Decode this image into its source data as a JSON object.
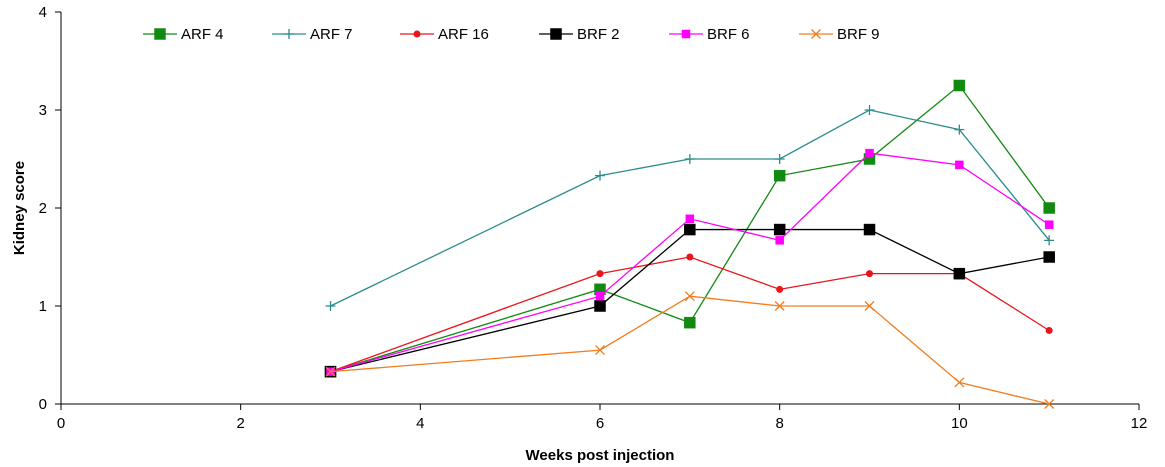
{
  "chart_data": {
    "type": "line",
    "title": "",
    "xlabel": "Weeks post injection",
    "ylabel": "Kidney score",
    "xlim": [
      0,
      12
    ],
    "ylim": [
      0,
      4
    ],
    "x_ticks": [
      0,
      2,
      4,
      6,
      8,
      10,
      12
    ],
    "y_ticks": [
      0,
      1,
      2,
      3,
      4
    ],
    "grid": false,
    "legend_position": "top",
    "series": [
      {
        "name": "ARF 4",
        "color": "#128a12",
        "marker": "square",
        "points": [
          [
            3,
            0.33
          ],
          [
            6,
            1.17
          ],
          [
            7,
            0.83
          ],
          [
            8,
            2.33
          ],
          [
            9,
            2.5
          ],
          [
            10,
            3.25
          ],
          [
            11,
            2.0
          ]
        ]
      },
      {
        "name": "ARF 7",
        "color": "#2b8c8c",
        "marker": "plus",
        "points": [
          [
            3,
            1.0
          ],
          [
            6,
            2.33
          ],
          [
            7,
            2.5
          ],
          [
            8,
            2.5
          ],
          [
            9,
            3.0
          ],
          [
            10,
            2.8
          ],
          [
            11,
            1.67
          ]
        ]
      },
      {
        "name": "ARF 16",
        "color": "#e8161b",
        "marker": "circle",
        "points": [
          [
            3,
            0.33
          ],
          [
            6,
            1.33
          ],
          [
            7,
            1.5
          ],
          [
            8,
            1.17
          ],
          [
            9,
            1.33
          ],
          [
            10,
            1.33
          ],
          [
            11,
            0.75
          ]
        ]
      },
      {
        "name": "BRF 2",
        "color": "#000000",
        "marker": "square",
        "points": [
          [
            3,
            0.33
          ],
          [
            6,
            1.0
          ],
          [
            7,
            1.78
          ],
          [
            8,
            1.78
          ],
          [
            9,
            1.78
          ],
          [
            10,
            1.33
          ],
          [
            11,
            1.5
          ]
        ]
      },
      {
        "name": "BRF 6",
        "color": "#ff00ff",
        "marker": "smallsquare",
        "points": [
          [
            3,
            0.33
          ],
          [
            6,
            1.1
          ],
          [
            7,
            1.89
          ],
          [
            8,
            1.67
          ],
          [
            9,
            2.56
          ],
          [
            10,
            2.44
          ],
          [
            11,
            1.83
          ]
        ]
      },
      {
        "name": "BRF 9",
        "color": "#f07d1e",
        "marker": "x",
        "points": [
          [
            3,
            0.33
          ],
          [
            6,
            0.55
          ],
          [
            7,
            1.1
          ],
          [
            8,
            1.0
          ],
          [
            9,
            1.0
          ],
          [
            10,
            0.22
          ],
          [
            11,
            0.0
          ]
        ]
      }
    ]
  }
}
